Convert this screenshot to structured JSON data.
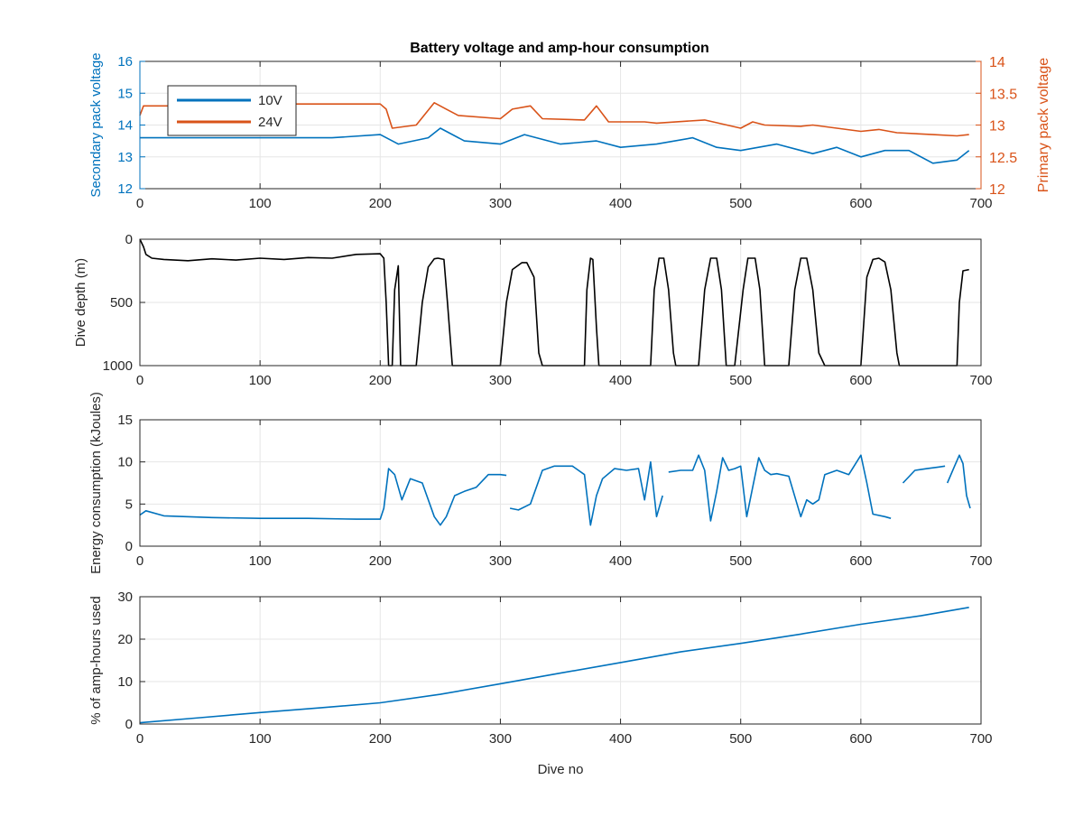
{
  "title": "Battery voltage and amp-hour consumption",
  "colors": {
    "blue": "#0072BD",
    "orange": "#D95319",
    "black": "#000000",
    "grid": "#e6e6e6",
    "axis": "#262626"
  },
  "chart_data": [
    {
      "type": "line",
      "title": "Battery voltage and amp-hour consumption",
      "xlabel": "",
      "ylabel": "Secondary pack voltage",
      "ylabel_right": "Primary pack voltage",
      "xlim": [
        0,
        700
      ],
      "ylim": [
        12,
        16
      ],
      "ylim_right": [
        12,
        14
      ],
      "xticks": [
        0,
        100,
        200,
        300,
        400,
        500,
        600,
        700
      ],
      "yticks": [
        12,
        13,
        14,
        15,
        16
      ],
      "yticks_right": [
        12,
        12.5,
        13,
        13.5,
        14
      ],
      "grid": true,
      "legend": "top-left",
      "series": [
        {
          "name": "10V",
          "axis": "left",
          "color": "#0072BD",
          "x": [
            0,
            10,
            40,
            80,
            120,
            160,
            200,
            215,
            240,
            250,
            270,
            300,
            320,
            350,
            380,
            400,
            430,
            460,
            480,
            500,
            530,
            560,
            580,
            600,
            620,
            640,
            660,
            680,
            690
          ],
          "y": [
            13.6,
            13.6,
            13.6,
            13.6,
            13.6,
            13.6,
            13.7,
            13.4,
            13.6,
            13.9,
            13.5,
            13.4,
            13.7,
            13.4,
            13.5,
            13.3,
            13.4,
            13.6,
            13.3,
            13.2,
            13.4,
            13.1,
            13.3,
            13.0,
            13.2,
            13.2,
            12.8,
            12.9,
            13.2
          ]
        },
        {
          "name": "24V",
          "axis": "right",
          "color": "#D95319",
          "x": [
            0,
            3,
            30,
            100,
            150,
            200,
            205,
            210,
            230,
            245,
            255,
            265,
            300,
            310,
            325,
            335,
            370,
            380,
            390,
            420,
            430,
            470,
            500,
            510,
            520,
            550,
            560,
            580,
            600,
            615,
            630,
            660,
            680,
            690
          ],
          "y": [
            13.15,
            13.3,
            13.3,
            13.33,
            13.33,
            13.33,
            13.25,
            12.95,
            13.0,
            13.35,
            13.25,
            13.15,
            13.1,
            13.25,
            13.3,
            13.1,
            13.08,
            13.3,
            13.05,
            13.05,
            13.03,
            13.08,
            12.95,
            13.05,
            13.0,
            12.98,
            13.0,
            12.95,
            12.9,
            12.93,
            12.88,
            12.85,
            12.83,
            12.85
          ]
        }
      ]
    },
    {
      "type": "line",
      "xlabel": "",
      "ylabel": "Dive depth (m)",
      "xlim": [
        0,
        700
      ],
      "ylim": [
        0,
        1000
      ],
      "y_reversed": true,
      "xticks": [
        0,
        100,
        200,
        300,
        400,
        500,
        600,
        700
      ],
      "yticks": [
        0,
        500,
        1000
      ],
      "grid": true,
      "series": [
        {
          "color": "#000000",
          "x": [
            0,
            3,
            5,
            10,
            20,
            40,
            60,
            80,
            100,
            120,
            140,
            160,
            180,
            200,
            203,
            205,
            207,
            210,
            212,
            215,
            217,
            220,
            230,
            235,
            240,
            245,
            248,
            253,
            256,
            260,
            262,
            300,
            305,
            310,
            318,
            322,
            328,
            332,
            335,
            370,
            372,
            375,
            377,
            380,
            382,
            400,
            425,
            428,
            432,
            436,
            440,
            444,
            446,
            448,
            455,
            465,
            470,
            475,
            480,
            484,
            488,
            495,
            502,
            506,
            512,
            516,
            520,
            525,
            540,
            545,
            550,
            555,
            560,
            565,
            570,
            575,
            600,
            605,
            610,
            615,
            620,
            625,
            630,
            632,
            640,
            680,
            682,
            685,
            690
          ],
          "y": [
            0,
            60,
            120,
            150,
            160,
            170,
            155,
            165,
            150,
            160,
            145,
            150,
            120,
            115,
            150,
            500,
            1000,
            1000,
            400,
            210,
            1000,
            1000,
            1000,
            500,
            220,
            155,
            150,
            160,
            500,
            1000,
            1000,
            1000,
            500,
            240,
            185,
            185,
            300,
            900,
            1000,
            1000,
            400,
            150,
            160,
            700,
            1000,
            1000,
            1000,
            400,
            150,
            150,
            400,
            900,
            1000,
            1000,
            1000,
            1000,
            400,
            150,
            150,
            400,
            1000,
            1000,
            400,
            150,
            150,
            400,
            1000,
            1000,
            1000,
            400,
            150,
            150,
            400,
            900,
            1000,
            1000,
            1000,
            300,
            160,
            150,
            180,
            400,
            900,
            1000,
            1000,
            1000,
            500,
            250,
            240
          ]
        }
      ]
    },
    {
      "type": "line",
      "xlabel": "",
      "ylabel": "Energy consumption (kJoules)",
      "xlim": [
        0,
        700
      ],
      "ylim": [
        0,
        15
      ],
      "xticks": [
        0,
        100,
        200,
        300,
        400,
        500,
        600,
        700
      ],
      "yticks": [
        0,
        5,
        10,
        15
      ],
      "grid": true,
      "series": [
        {
          "color": "#0072BD",
          "x": [
            0,
            5,
            20,
            60,
            100,
            140,
            180,
            200,
            203,
            207,
            212,
            218,
            225,
            235,
            245,
            250,
            255,
            262,
            270,
            280,
            290,
            300,
            305
          ],
          "y": [
            3.7,
            4.2,
            3.6,
            3.4,
            3.3,
            3.3,
            3.2,
            3.2,
            4.5,
            9.2,
            8.5,
            5.5,
            8.0,
            7.5,
            3.5,
            2.5,
            3.5,
            6.0,
            6.5,
            7.0,
            8.5,
            8.5,
            8.4
          ]
        },
        {
          "color": "#0072BD",
          "x": [
            308,
            315,
            325,
            335,
            345,
            360,
            370,
            375,
            380,
            385,
            395,
            405,
            415,
            420,
            425,
            430,
            435
          ],
          "y": [
            4.5,
            4.3,
            5.0,
            9.0,
            9.5,
            9.5,
            8.5,
            2.5,
            6.0,
            8.0,
            9.2,
            9.0,
            9.2,
            5.5,
            10.0,
            3.5,
            6.0
          ]
        },
        {
          "color": "#0072BD",
          "x": [
            440,
            450,
            460,
            465,
            470,
            475,
            480,
            485,
            490,
            495,
            500,
            505,
            510,
            515,
            520,
            525,
            530,
            540,
            550,
            555,
            560,
            565,
            570,
            580,
            590,
            600,
            605,
            610,
            620,
            625
          ],
          "y": [
            8.8,
            9.0,
            9.0,
            10.8,
            9.0,
            3.0,
            6.5,
            10.5,
            9.0,
            9.2,
            9.5,
            3.5,
            7.0,
            10.5,
            9.0,
            8.5,
            8.6,
            8.3,
            3.5,
            5.5,
            5.0,
            5.5,
            8.5,
            9.0,
            8.5,
            10.8,
            7.5,
            3.8,
            3.5,
            3.3
          ]
        },
        {
          "color": "#0072BD",
          "x": [
            635,
            645,
            655,
            665,
            670
          ],
          "y": [
            7.5,
            9.0,
            9.2,
            9.4,
            9.5
          ]
        },
        {
          "color": "#0072BD",
          "x": [
            672,
            678,
            682,
            685,
            688,
            691
          ],
          "y": [
            7.5,
            9.5,
            10.8,
            9.8,
            6.0,
            4.5
          ]
        }
      ]
    },
    {
      "type": "line",
      "xlabel": "Dive no",
      "ylabel": "% of amp-hours used",
      "xlim": [
        0,
        700
      ],
      "ylim": [
        0,
        30
      ],
      "xticks": [
        0,
        100,
        200,
        300,
        400,
        500,
        600,
        700
      ],
      "yticks": [
        0,
        10,
        20,
        30
      ],
      "grid": true,
      "series": [
        {
          "color": "#0072BD",
          "x": [
            0,
            50,
            100,
            150,
            200,
            250,
            300,
            350,
            400,
            450,
            500,
            550,
            600,
            650,
            690
          ],
          "y": [
            0.3,
            1.5,
            2.7,
            3.8,
            5.0,
            7.0,
            9.5,
            12.0,
            14.5,
            17.0,
            19.0,
            21.2,
            23.5,
            25.5,
            27.5
          ]
        }
      ]
    }
  ]
}
